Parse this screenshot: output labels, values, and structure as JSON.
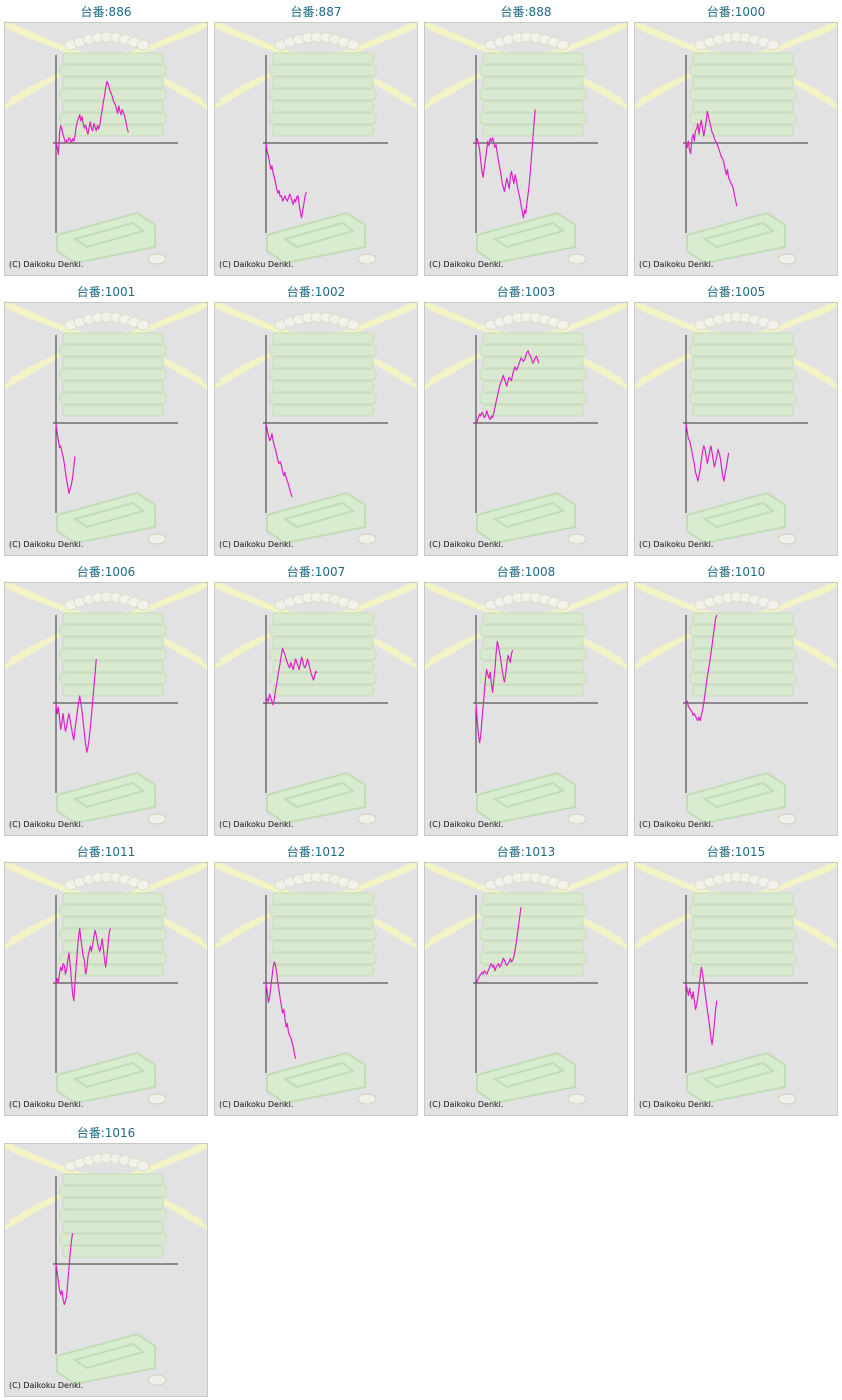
{
  "title_prefix": "台番:",
  "credit": "(C) Daikoku Denki.",
  "line_color": "#e020c8",
  "chart_data": [
    {
      "type": "line",
      "title": "台番:886",
      "machine": "886",
      "x_count": 104,
      "ylim": [
        -1,
        1
      ],
      "baseline": 0,
      "values": [
        0,
        -0.05,
        -0.13,
        0.12,
        0.2,
        0.15,
        0.09,
        0.05,
        0.0,
        0.03,
        0.02,
        0.06,
        0.04,
        0.0,
        0.05,
        0.02,
        0.08,
        0.18,
        0.24,
        0.28,
        0.32,
        0.25,
        0.3,
        0.22,
        0.17,
        0.2,
        0.14,
        0.1,
        0.18,
        0.24,
        0.16,
        0.14,
        0.22,
        0.18,
        0.14,
        0.2,
        0.16,
        0.2,
        0.3,
        0.38,
        0.47,
        0.54,
        0.63,
        0.7,
        0.67,
        0.62,
        0.58,
        0.55,
        0.5,
        0.46,
        0.44,
        0.39,
        0.34,
        0.42,
        0.36,
        0.32,
        0.38,
        0.34,
        0.3,
        0.24,
        0.17,
        0.12
      ]
    },
    {
      "type": "line",
      "title": "台番:887",
      "machine": "887",
      "x_count": 104,
      "ylim": [
        -1,
        1
      ],
      "baseline": 0,
      "values": [
        0,
        -0.1,
        -0.15,
        -0.22,
        -0.3,
        -0.26,
        -0.34,
        -0.39,
        -0.45,
        -0.52,
        -0.57,
        -0.54,
        -0.61,
        -0.6,
        -0.66,
        -0.63,
        -0.6,
        -0.64,
        -0.66,
        -0.62,
        -0.58,
        -0.61,
        -0.66,
        -0.7,
        -0.64,
        -0.67,
        -0.61,
        -0.6,
        -0.7,
        -0.78,
        -0.85,
        -0.77,
        -0.69,
        -0.6,
        -0.56
      ]
    },
    {
      "type": "line",
      "title": "台番:888",
      "machine": "888",
      "x_count": 104,
      "ylim": [
        -1,
        1
      ],
      "baseline": 0,
      "values": [
        0,
        0.05,
        0.0,
        -0.08,
        -0.2,
        -0.32,
        -0.39,
        -0.28,
        -0.18,
        -0.08,
        0.02,
        -0.03,
        0.05,
        0.02,
        0.06,
        0.0,
        -0.05,
        -0.02,
        -0.12,
        -0.2,
        -0.28,
        -0.35,
        -0.45,
        -0.5,
        -0.55,
        -0.48,
        -0.4,
        -0.46,
        -0.52,
        -0.38,
        -0.32,
        -0.4,
        -0.46,
        -0.36,
        -0.42,
        -0.5,
        -0.56,
        -0.62,
        -0.7,
        -0.78,
        -0.85,
        -0.76,
        -0.8,
        -0.68,
        -0.58,
        -0.46,
        -0.3,
        -0.12,
        0.05,
        0.22,
        0.38
      ]
    },
    {
      "type": "line",
      "title": "台番:1000",
      "machine": "1000",
      "x_count": 104,
      "ylim": [
        -1,
        1
      ],
      "baseline": 0,
      "values": [
        0,
        -0.05,
        0.02,
        -0.08,
        -0.12,
        0.05,
        0.1,
        0.02,
        0.14,
        0.16,
        0.22,
        0.1,
        0.2,
        0.26,
        0.16,
        0.08,
        0.16,
        0.24,
        0.36,
        0.3,
        0.24,
        0.18,
        0.12,
        0.1,
        0.05,
        0.02,
        0.0,
        -0.04,
        -0.08,
        -0.12,
        -0.16,
        -0.18,
        -0.22,
        -0.3,
        -0.36,
        -0.3,
        -0.4,
        -0.42,
        -0.46,
        -0.48,
        -0.52,
        -0.6,
        -0.66,
        -0.72
      ]
    },
    {
      "type": "line",
      "title": "台番:1001",
      "machine": "1001",
      "x_count": 104,
      "ylim": [
        -1,
        1
      ],
      "baseline": 0,
      "values": [
        0,
        -0.12,
        -0.2,
        -0.28,
        -0.26,
        -0.33,
        -0.38,
        -0.46,
        -0.56,
        -0.65,
        -0.72,
        -0.8,
        -0.75,
        -0.7,
        -0.62,
        -0.5,
        -0.38
      ]
    },
    {
      "type": "line",
      "title": "台番:1002",
      "machine": "1002",
      "x_count": 104,
      "ylim": [
        -1,
        1
      ],
      "baseline": 0,
      "values": [
        0,
        -0.08,
        -0.14,
        -0.2,
        -0.18,
        -0.12,
        -0.2,
        -0.26,
        -0.3,
        -0.36,
        -0.42,
        -0.46,
        -0.44,
        -0.48,
        -0.55,
        -0.6,
        -0.56,
        -0.62,
        -0.66,
        -0.7,
        -0.75,
        -0.8,
        -0.84
      ]
    },
    {
      "type": "line",
      "title": "台番:1003",
      "machine": "1003",
      "x_count": 104,
      "ylim": [
        -1,
        1
      ],
      "baseline": 0,
      "values": [
        0,
        0.02,
        0.06,
        0.1,
        0.08,
        0.12,
        0.1,
        0.06,
        0.08,
        0.14,
        0.1,
        0.06,
        0.04,
        0.08,
        0.06,
        0.12,
        0.18,
        0.24,
        0.3,
        0.36,
        0.42,
        0.46,
        0.5,
        0.54,
        0.5,
        0.46,
        0.42,
        0.48,
        0.52,
        0.5,
        0.48,
        0.56,
        0.6,
        0.64,
        0.6,
        0.62,
        0.66,
        0.7,
        0.74,
        0.72,
        0.7,
        0.72,
        0.76,
        0.8,
        0.82,
        0.78,
        0.76,
        0.72,
        0.68,
        0.7,
        0.74,
        0.76,
        0.72,
        0.68
      ]
    },
    {
      "type": "line",
      "title": "台番:1005",
      "machine": "1005",
      "x_count": 104,
      "ylim": [
        -1,
        1
      ],
      "baseline": 0,
      "values": [
        0,
        -0.1,
        -0.18,
        -0.2,
        -0.26,
        -0.32,
        -0.4,
        -0.46,
        -0.56,
        -0.6,
        -0.66,
        -0.6,
        -0.52,
        -0.42,
        -0.32,
        -0.26,
        -0.3,
        -0.38,
        -0.46,
        -0.4,
        -0.32,
        -0.26,
        -0.34,
        -0.42,
        -0.5,
        -0.44,
        -0.38,
        -0.3,
        -0.34,
        -0.4,
        -0.5,
        -0.6,
        -0.66,
        -0.58,
        -0.5,
        -0.42,
        -0.34
      ]
    },
    {
      "type": "line",
      "title": "台番:1006",
      "machine": "1006",
      "x_count": 104,
      "ylim": [
        -1,
        1
      ],
      "baseline": 0,
      "values": [
        0,
        -0.12,
        -0.05,
        -0.18,
        -0.3,
        -0.22,
        -0.12,
        -0.24,
        -0.32,
        -0.26,
        -0.18,
        -0.12,
        -0.2,
        -0.28,
        -0.36,
        -0.42,
        -0.3,
        -0.2,
        -0.1,
        0.0,
        0.08,
        0.0,
        -0.1,
        -0.22,
        -0.34,
        -0.46,
        -0.56,
        -0.5,
        -0.4,
        -0.28,
        -0.14,
        0.02,
        0.18,
        0.34,
        0.5
      ]
    },
    {
      "type": "line",
      "title": "台番:1007",
      "machine": "1007",
      "x_count": 104,
      "ylim": [
        -1,
        1
      ],
      "baseline": 0,
      "values": [
        0,
        0.05,
        0.02,
        0.1,
        0.06,
        0.02,
        -0.02,
        0.05,
        0.14,
        0.22,
        0.3,
        0.38,
        0.46,
        0.55,
        0.62,
        0.58,
        0.55,
        0.5,
        0.46,
        0.42,
        0.4,
        0.46,
        0.42,
        0.38,
        0.44,
        0.5,
        0.46,
        0.42,
        0.38,
        0.44,
        0.52,
        0.48,
        0.42,
        0.4,
        0.44,
        0.5,
        0.46,
        0.4,
        0.34,
        0.3,
        0.26,
        0.3,
        0.36,
        0.34
      ]
    },
    {
      "type": "line",
      "title": "台番:1008",
      "machine": "1008",
      "x_count": 104,
      "ylim": [
        -1,
        1
      ],
      "baseline": 0,
      "values": [
        0,
        -0.2,
        -0.35,
        -0.45,
        -0.38,
        -0.2,
        -0.05,
        0.1,
        0.28,
        0.38,
        0.32,
        0.28,
        0.35,
        0.22,
        0.12,
        0.26,
        0.4,
        0.56,
        0.7,
        0.64,
        0.56,
        0.48,
        0.38,
        0.3,
        0.24,
        0.32,
        0.44,
        0.54,
        0.5,
        0.46,
        0.56,
        0.6
      ]
    },
    {
      "type": "line",
      "title": "台番:1010",
      "machine": "1010",
      "x_count": 104,
      "ylim": [
        -1,
        1
      ],
      "baseline": 0,
      "values": [
        0,
        0.02,
        -0.04,
        -0.06,
        -0.08,
        -0.1,
        -0.14,
        -0.12,
        -0.15,
        -0.18,
        -0.2,
        -0.16,
        -0.2,
        -0.14,
        -0.08,
        0.0,
        0.1,
        0.2,
        0.3,
        0.38,
        0.46,
        0.56,
        0.66,
        0.76,
        0.86,
        0.96,
        1.0
      ]
    },
    {
      "type": "line",
      "title": "台番:1011",
      "machine": "1011",
      "x_count": 104,
      "ylim": [
        -1,
        1
      ],
      "baseline": 0,
      "values": [
        0,
        0.05,
        0.0,
        0.12,
        0.18,
        0.14,
        0.22,
        0.2,
        0.1,
        0.16,
        0.26,
        0.34,
        0.2,
        0.04,
        -0.12,
        -0.2,
        0.0,
        0.18,
        0.36,
        0.52,
        0.62,
        0.5,
        0.4,
        0.3,
        0.26,
        0.1,
        0.16,
        0.3,
        0.36,
        0.42,
        0.36,
        0.44,
        0.52,
        0.6,
        0.54,
        0.46,
        0.4,
        0.36,
        0.42,
        0.5,
        0.38,
        0.26,
        0.18,
        0.3,
        0.44,
        0.58,
        0.62
      ]
    },
    {
      "type": "line",
      "title": "台番:1012",
      "machine": "1012",
      "x_count": 104,
      "ylim": [
        -1,
        1
      ],
      "baseline": 0,
      "values": [
        0,
        -0.1,
        -0.22,
        -0.16,
        -0.05,
        0.06,
        0.18,
        0.24,
        0.2,
        0.12,
        0.0,
        -0.08,
        -0.18,
        -0.26,
        -0.34,
        -0.3,
        -0.4,
        -0.5,
        -0.46,
        -0.56,
        -0.6,
        -0.62,
        -0.68,
        -0.72,
        -0.8,
        -0.86
      ]
    },
    {
      "type": "line",
      "title": "台番:1013",
      "machine": "1013",
      "x_count": 104,
      "ylim": [
        -1,
        1
      ],
      "baseline": 0,
      "values": [
        0,
        0.02,
        0.05,
        0.08,
        0.1,
        0.12,
        0.1,
        0.14,
        0.12,
        0.1,
        0.13,
        0.16,
        0.2,
        0.22,
        0.18,
        0.2,
        0.14,
        0.18,
        0.2,
        0.22,
        0.18,
        0.2,
        0.24,
        0.28,
        0.26,
        0.22,
        0.2,
        0.22,
        0.24,
        0.28,
        0.24,
        0.26,
        0.3,
        0.38,
        0.46,
        0.56,
        0.66,
        0.76,
        0.86
      ]
    },
    {
      "type": "line",
      "title": "台番:1015",
      "machine": "1015",
      "x_count": 104,
      "ylim": [
        -1,
        1
      ],
      "baseline": 0,
      "values": [
        0,
        -0.08,
        -0.14,
        -0.06,
        -0.12,
        -0.18,
        -0.1,
        -0.2,
        -0.3,
        -0.24,
        -0.16,
        -0.05,
        0.08,
        0.18,
        0.1,
        0.0,
        -0.1,
        -0.2,
        -0.3,
        -0.4,
        -0.5,
        -0.62,
        -0.7,
        -0.6,
        -0.46,
        -0.3,
        -0.2
      ]
    },
    {
      "type": "line",
      "title": "台番:1016",
      "machine": "1016",
      "x_count": 104,
      "ylim": [
        -1,
        1
      ],
      "baseline": 0,
      "values": [
        0,
        -0.1,
        -0.2,
        -0.3,
        -0.35,
        -0.3,
        -0.4,
        -0.46,
        -0.42,
        -0.36,
        -0.2,
        -0.04,
        0.12,
        0.26,
        0.35
      ]
    }
  ]
}
